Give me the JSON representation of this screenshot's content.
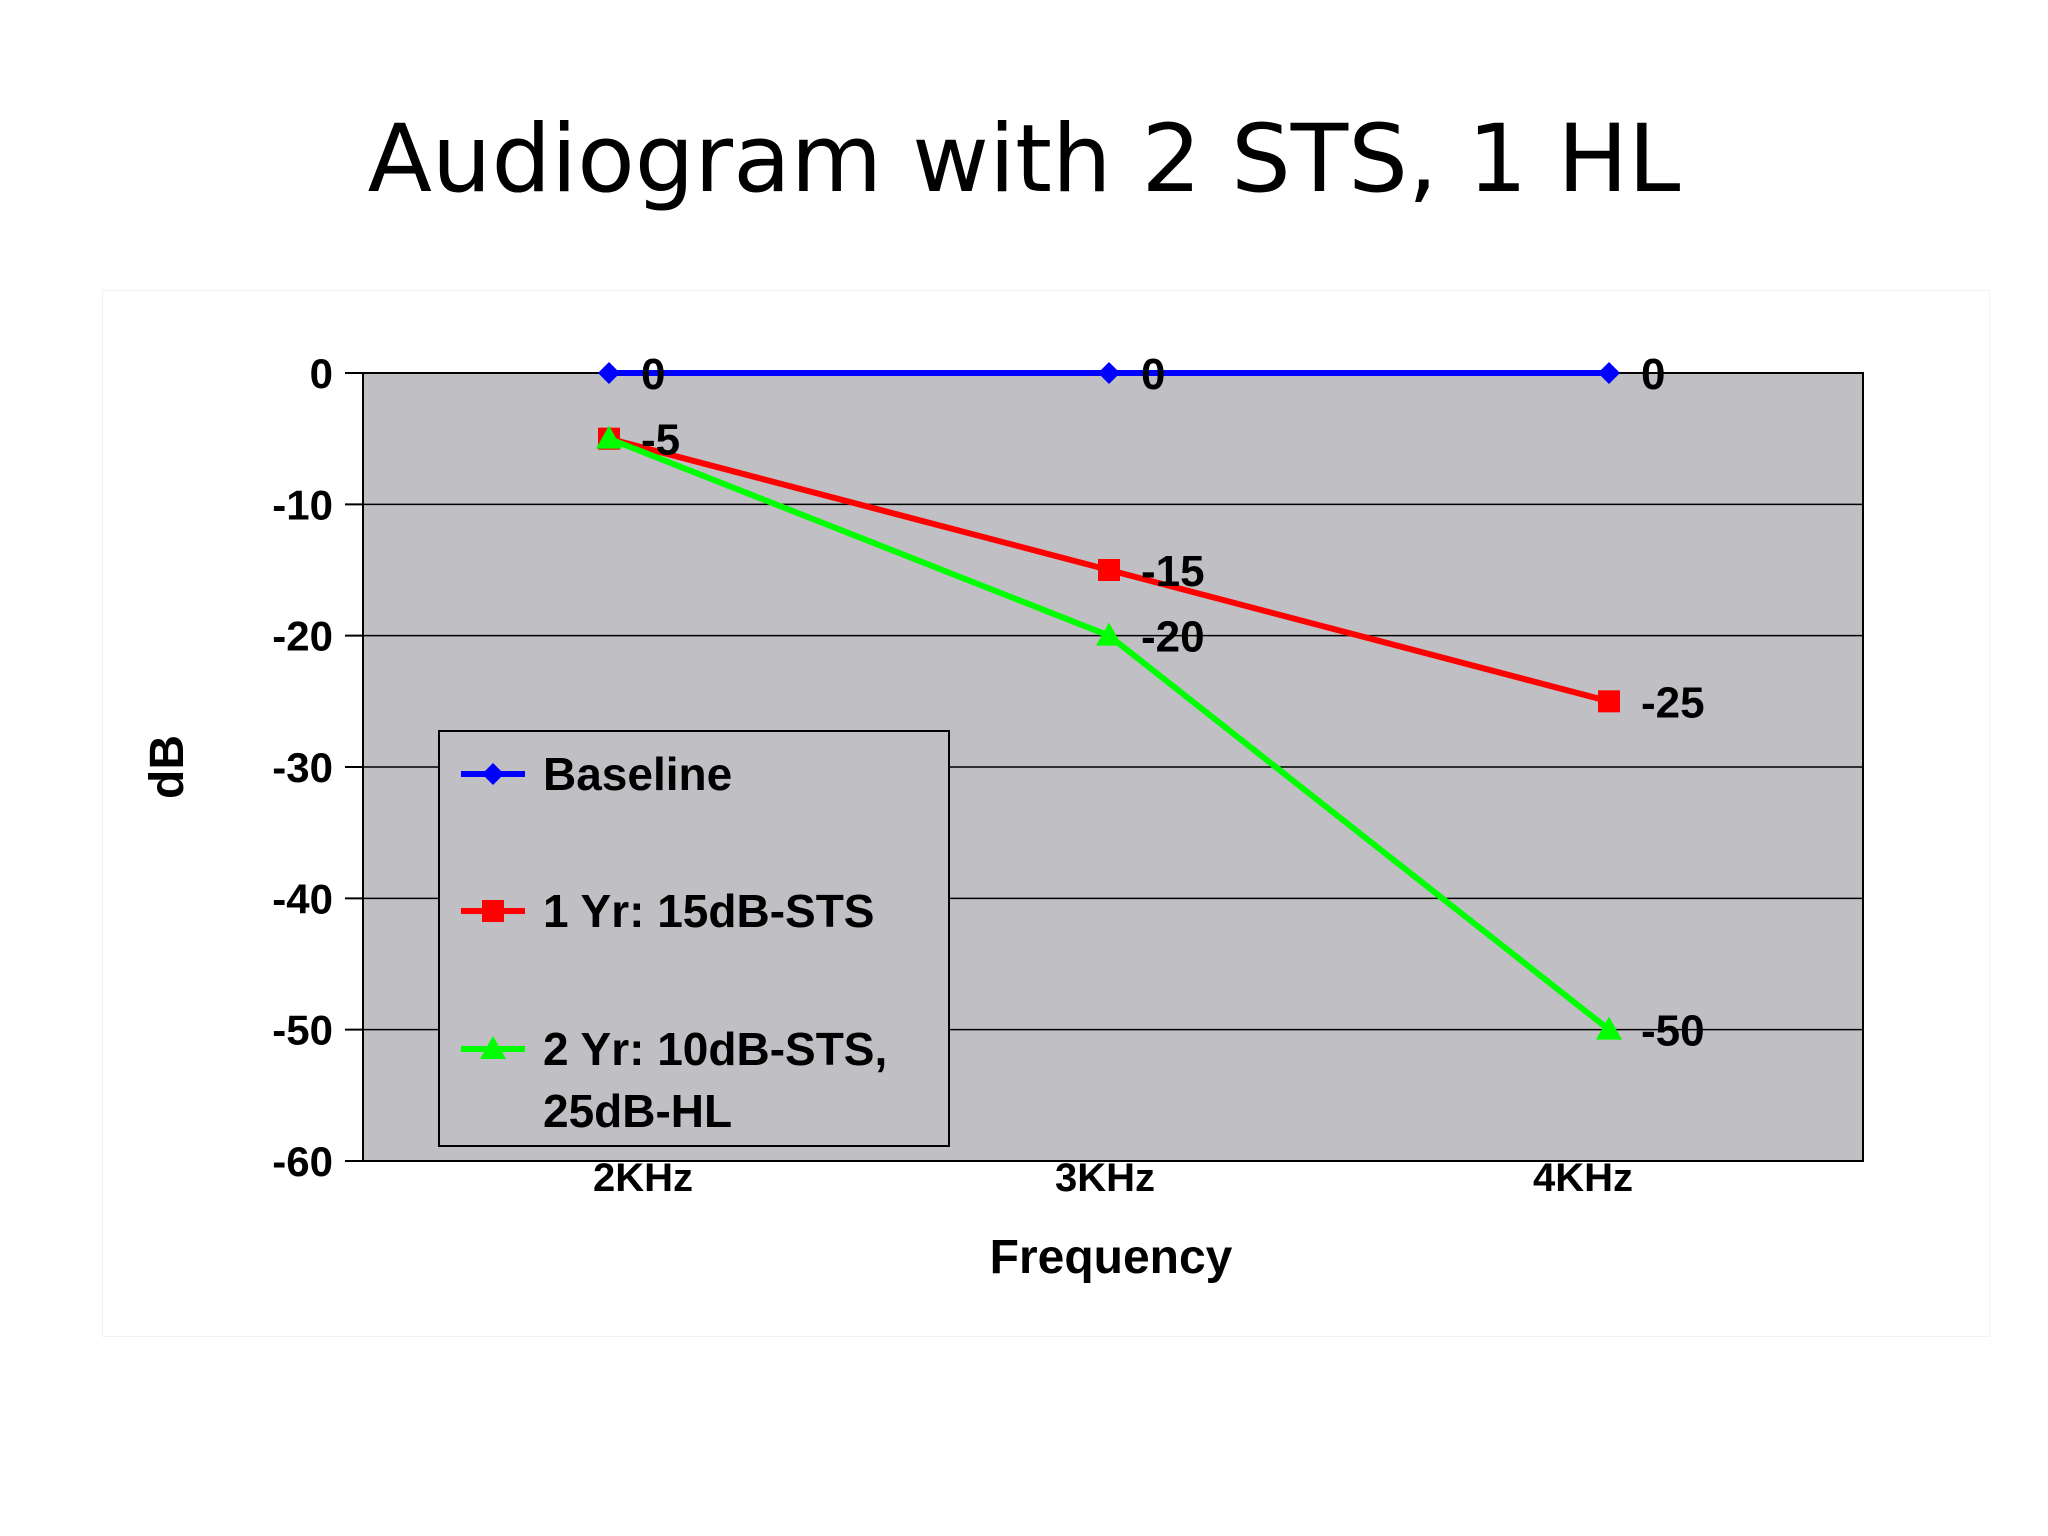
{
  "slide": {
    "title": "Audiogram with 2 STS, 1 HL"
  },
  "chart_data": {
    "type": "line",
    "title": "Audiogram with 2 STS, 1 HL",
    "xlabel": "Frequency",
    "ylabel": "dB",
    "categories": [
      "2KHz",
      "3KHz",
      "4KHz"
    ],
    "ylim": [
      -60,
      0
    ],
    "yticks": [
      0,
      -10,
      -20,
      -30,
      -40,
      -50,
      -60
    ],
    "grid": true,
    "plot_background": "#c0bfc3",
    "legend": {
      "placement": "bottom-left inside plot",
      "entries": [
        "Baseline",
        "1 Yr: 15dB-STS",
        "2 Yr: 10dB-STS, 25dB-HL"
      ]
    },
    "series": [
      {
        "name": "Baseline",
        "values": [
          0,
          0,
          0
        ],
        "color": "#0000ff",
        "marker": "diamond",
        "labels": [
          "0",
          "0",
          "0"
        ]
      },
      {
        "name": "1 Yr: 15dB-STS",
        "values": [
          -5,
          -15,
          -25
        ],
        "color": "#ff0000",
        "marker": "square",
        "labels": [
          "-5",
          "-15",
          "-25"
        ]
      },
      {
        "name": "2 Yr: 10dB-STS, 25dB-HL",
        "values": [
          -5,
          -20,
          -50
        ],
        "color": "#00ff00",
        "marker": "triangle",
        "labels": [
          "",
          "-20",
          "-50"
        ]
      }
    ]
  }
}
